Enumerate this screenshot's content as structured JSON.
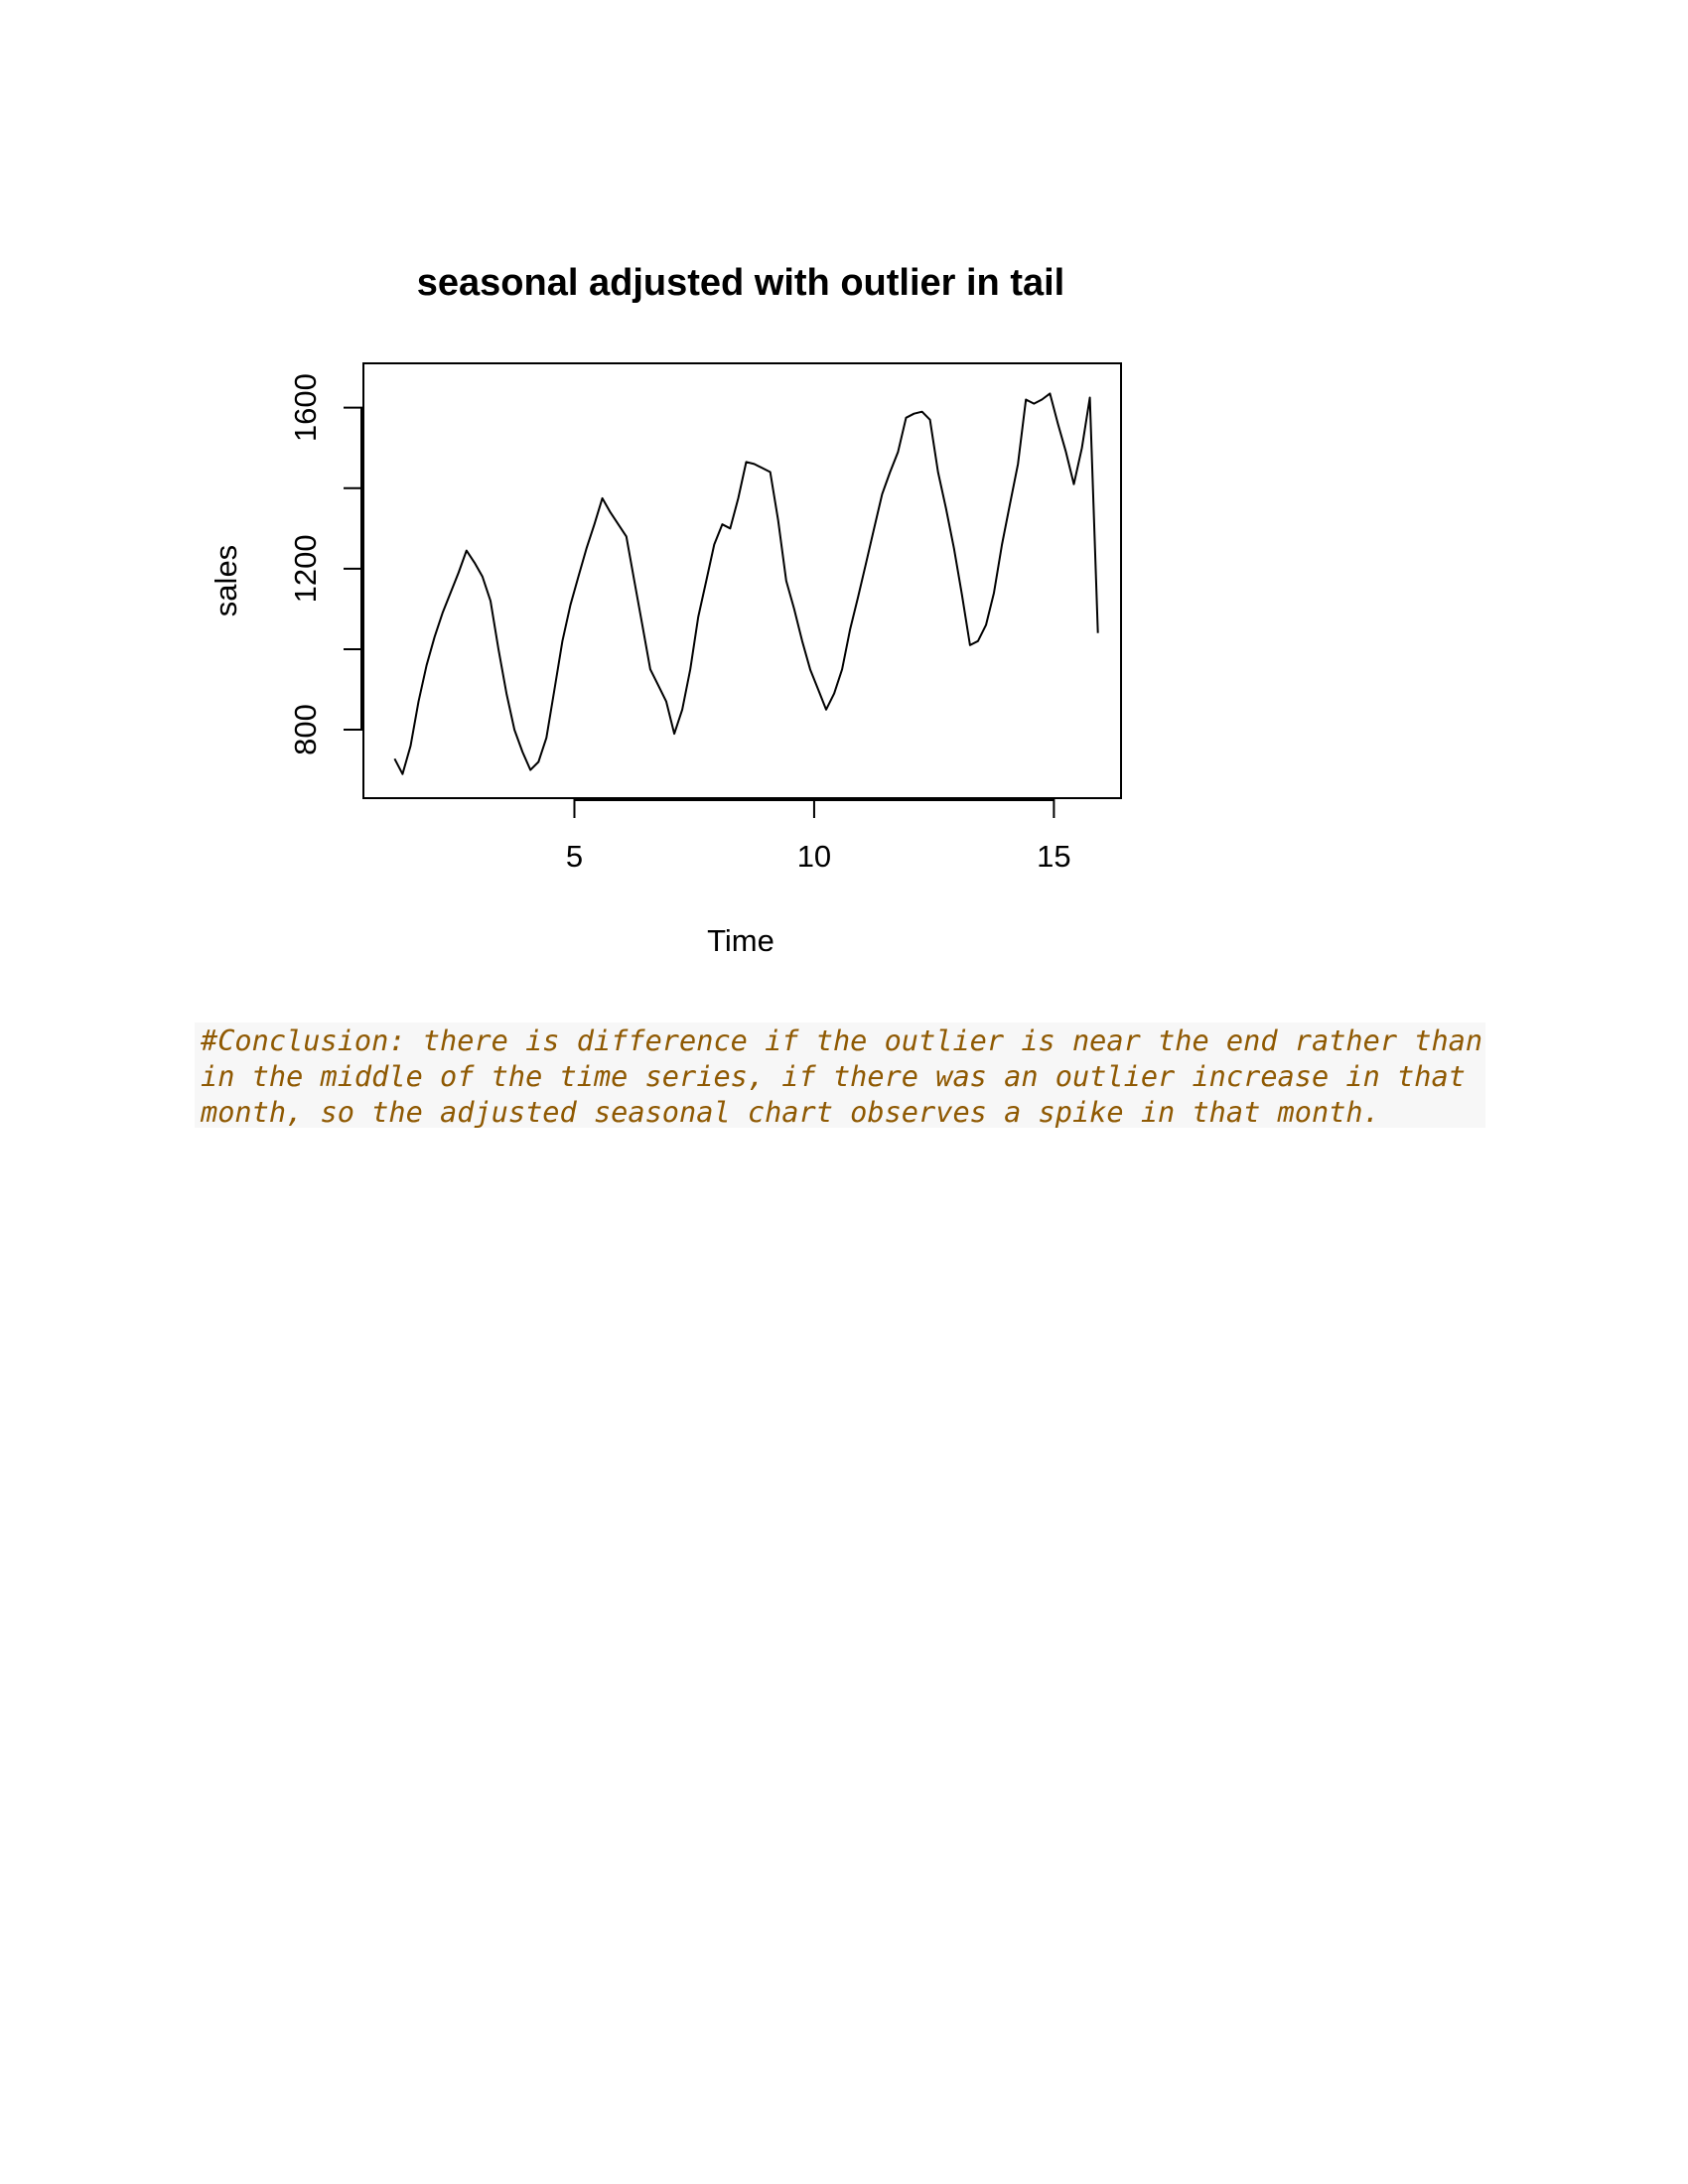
{
  "chart_data": {
    "type": "line",
    "title": "seasonal adjusted with outlier in tail",
    "xlabel": "Time",
    "ylabel": "sales",
    "xlim": [
      0.6,
      16.4
    ],
    "ylim": [
      630,
      1710
    ],
    "xticks": [
      5,
      10,
      15
    ],
    "yticks": [
      800,
      1000,
      1200,
      1400,
      1600
    ],
    "ytick_labels_shown": [
      "800",
      "1200",
      "1600"
    ],
    "grid": false,
    "series": [
      {
        "color": "#000000",
        "x": [
          1.25,
          1.4167,
          1.5833,
          1.75,
          1.9167,
          2.0833,
          2.25,
          2.4167,
          2.5833,
          2.75,
          2.9167,
          3.0833,
          3.25,
          3.4167,
          3.5833,
          3.75,
          3.9167,
          4.0833,
          4.25,
          4.4167,
          4.5833,
          4.75,
          4.9167,
          5.0833,
          5.25,
          5.4167,
          5.5833,
          5.75,
          5.9167,
          6.0833,
          6.25,
          6.4167,
          6.5833,
          6.75,
          6.9167,
          7.0833,
          7.25,
          7.4167,
          7.5833,
          7.75,
          7.9167,
          8.0833,
          8.25,
          8.4167,
          8.5833,
          8.75,
          8.9167,
          9.0833,
          9.25,
          9.4167,
          9.5833,
          9.75,
          9.9167,
          10.0833,
          10.25,
          10.4167,
          10.5833,
          10.75,
          10.9167,
          11.0833,
          11.25,
          11.4167,
          11.5833,
          11.75,
          11.9167,
          12.0833,
          12.25,
          12.4167,
          12.5833,
          12.75,
          12.9167,
          13.0833,
          13.25,
          13.4167,
          13.5833,
          13.75,
          13.9167,
          14.0833,
          14.25,
          14.4167,
          14.5833,
          14.75,
          14.9167,
          15.0833,
          15.25,
          15.4167,
          15.5833,
          15.75,
          15.9167
        ],
        "values": [
          728,
          690,
          760,
          870,
          960,
          1030,
          1090,
          1140,
          1190,
          1245,
          1215,
          1180,
          1120,
          1000,
          890,
          800,
          745,
          700,
          720,
          780,
          900,
          1020,
          1110,
          1180,
          1250,
          1310,
          1375,
          1340,
          1310,
          1280,
          1170,
          1060,
          950,
          910,
          870,
          790,
          850,
          950,
          1080,
          1170,
          1260,
          1310,
          1300,
          1375,
          1465,
          1460,
          1450,
          1440,
          1320,
          1170,
          1100,
          1020,
          950,
          900,
          850,
          890,
          950,
          1050,
          1130,
          1215,
          1300,
          1385,
          1440,
          1490,
          1575,
          1585,
          1590,
          1570,
          1440,
          1350,
          1250,
          1135,
          1010,
          1020,
          1060,
          1140,
          1260,
          1360,
          1460,
          1620,
          1610,
          1620,
          1635,
          1560,
          1490,
          1410,
          1500,
          1625,
          1040
        ]
      }
    ]
  },
  "conclusion": {
    "lines": [
      "#Conclusion: there is difference if the outlier is near the end rather than",
      "in the middle of the time series, if there was an outlier increase in that",
      "month, so the adjusted seasonal chart observes a spike in that month."
    ]
  }
}
